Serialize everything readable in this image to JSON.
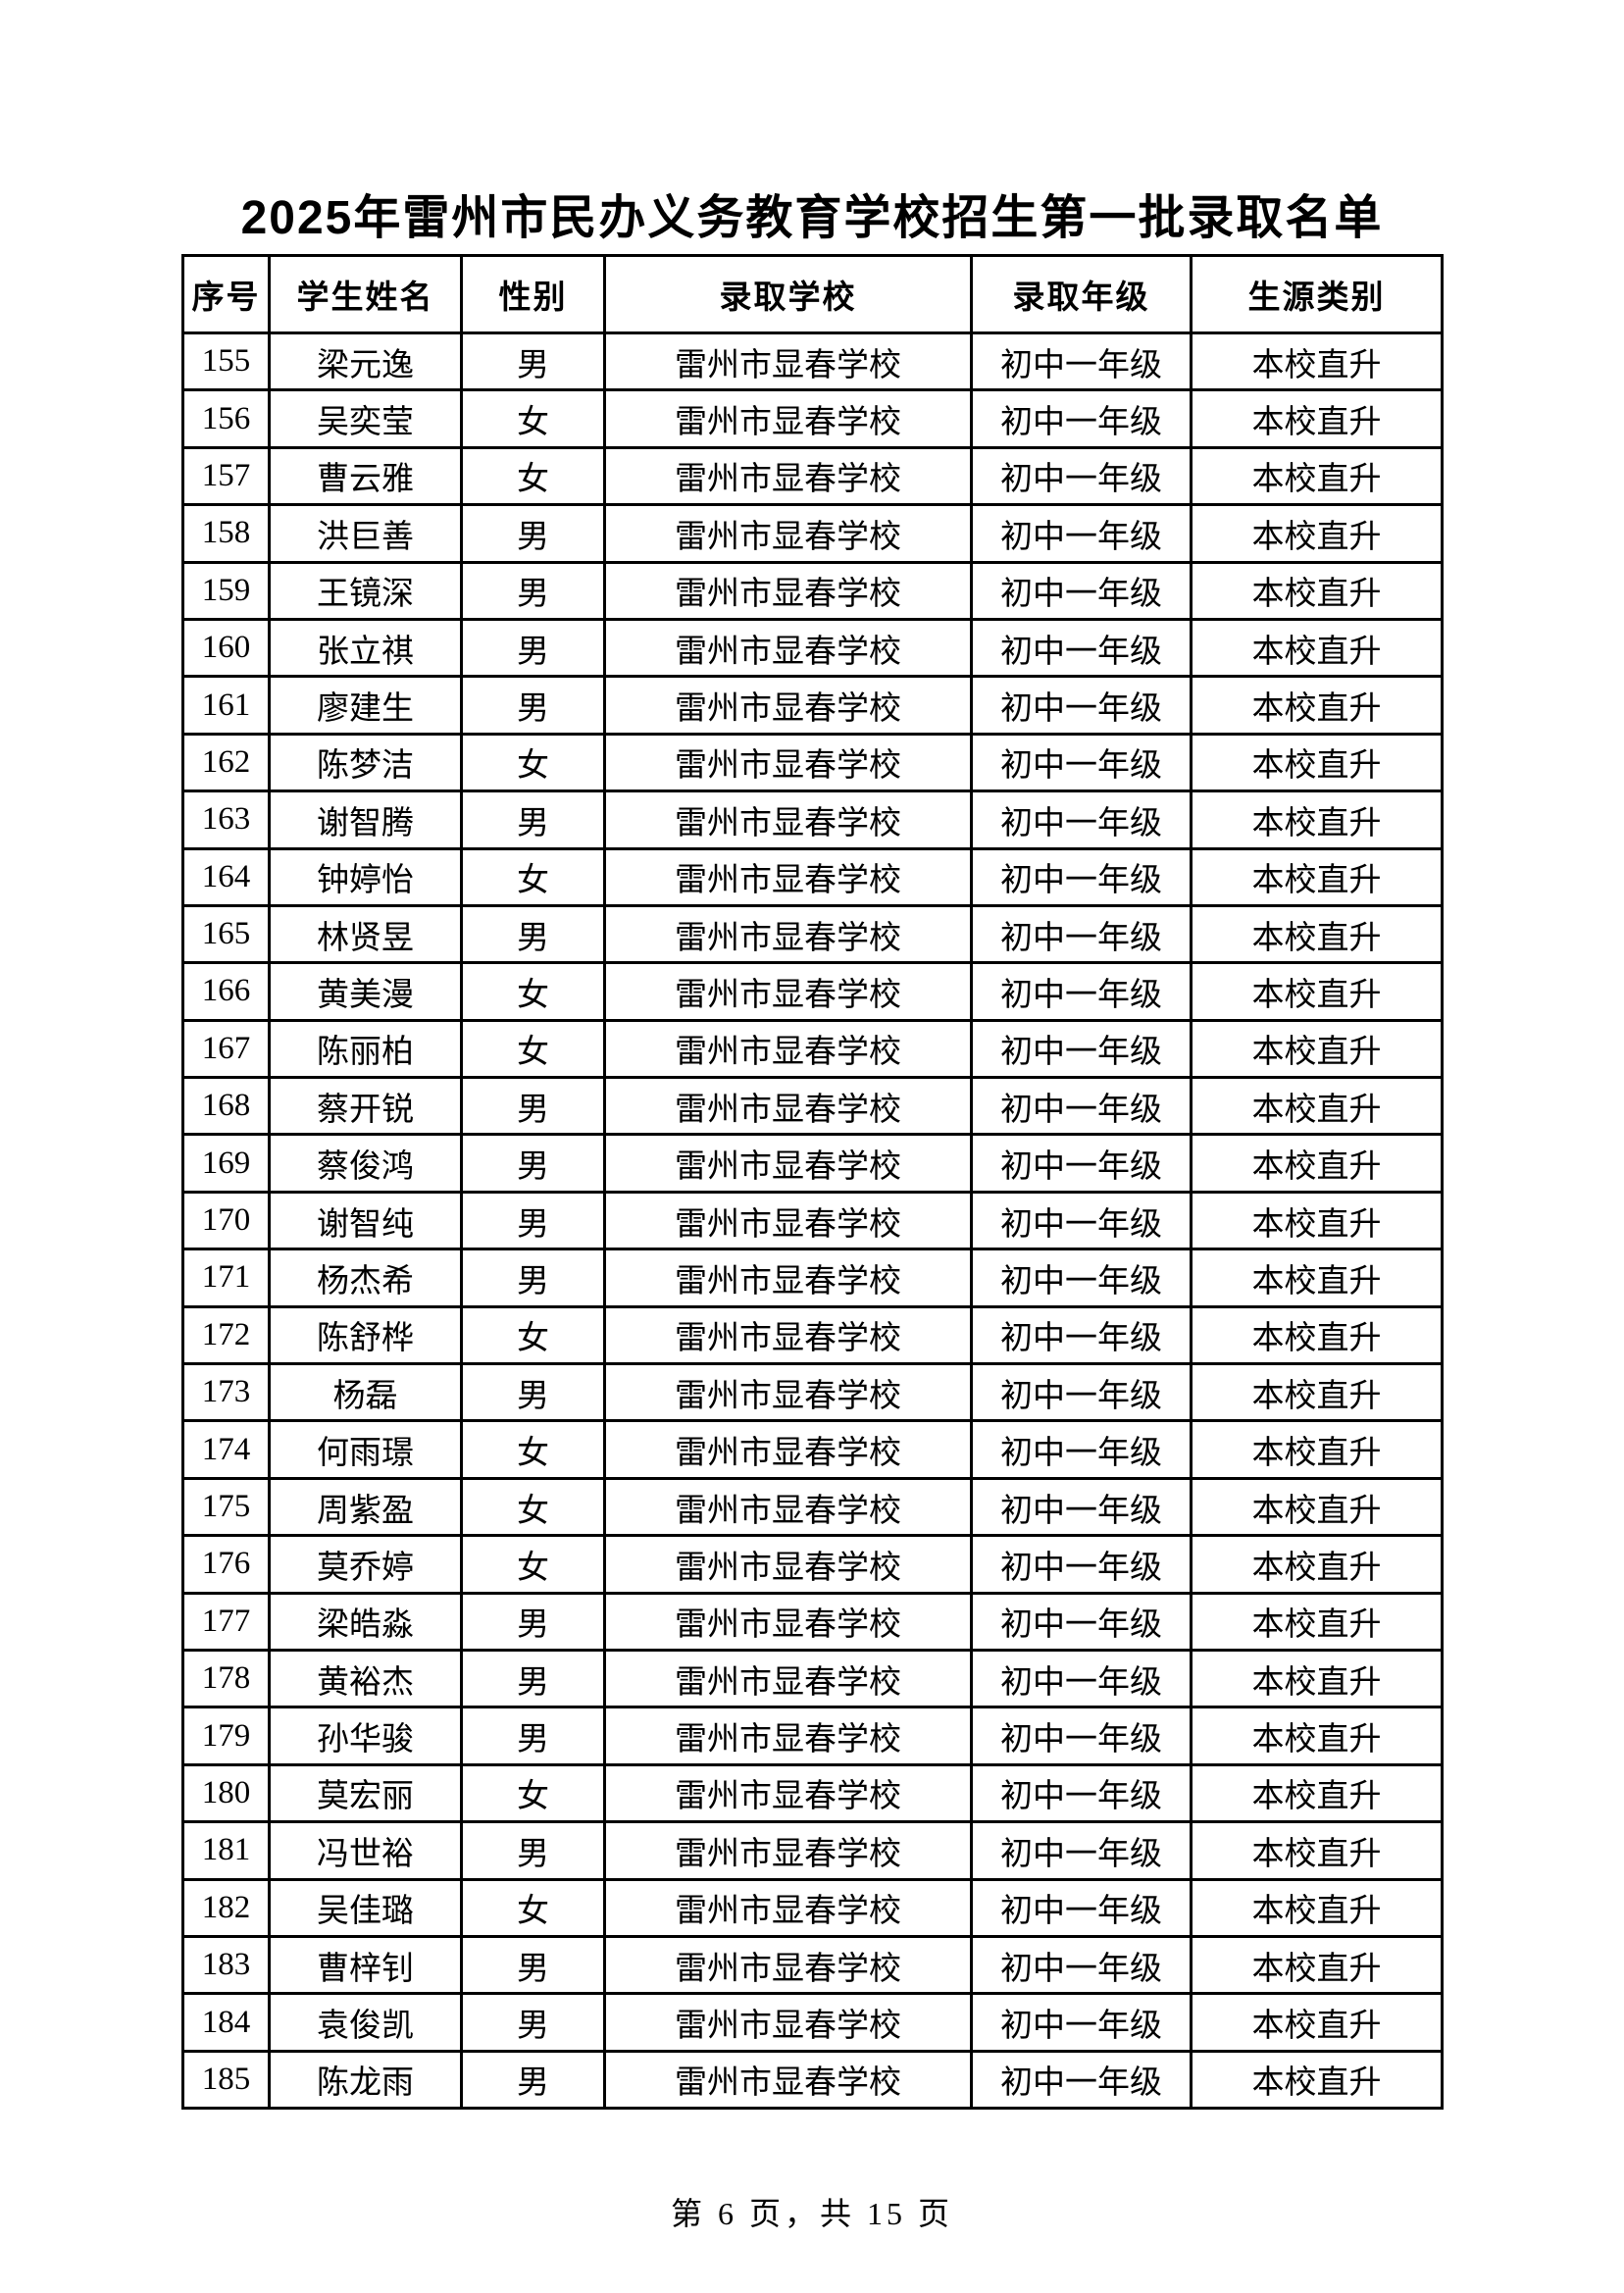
{
  "page": {
    "title": "2025年雷州市民办义务教育学校招生第一批录取名单",
    "footer": "第 6 页，共 15 页"
  },
  "table": {
    "headers": [
      "序号",
      "学生姓名",
      "性别",
      "录取学校",
      "录取年级",
      "生源类别"
    ],
    "rows": [
      [
        "155",
        "梁元逸",
        "男",
        "雷州市显春学校",
        "初中一年级",
        "本校直升"
      ],
      [
        "156",
        "吴奕莹",
        "女",
        "雷州市显春学校",
        "初中一年级",
        "本校直升"
      ],
      [
        "157",
        "曹云雅",
        "女",
        "雷州市显春学校",
        "初中一年级",
        "本校直升"
      ],
      [
        "158",
        "洪巨善",
        "男",
        "雷州市显春学校",
        "初中一年级",
        "本校直升"
      ],
      [
        "159",
        "王镜深",
        "男",
        "雷州市显春学校",
        "初中一年级",
        "本校直升"
      ],
      [
        "160",
        "张立祺",
        "男",
        "雷州市显春学校",
        "初中一年级",
        "本校直升"
      ],
      [
        "161",
        "廖建生",
        "男",
        "雷州市显春学校",
        "初中一年级",
        "本校直升"
      ],
      [
        "162",
        "陈梦洁",
        "女",
        "雷州市显春学校",
        "初中一年级",
        "本校直升"
      ],
      [
        "163",
        "谢智腾",
        "男",
        "雷州市显春学校",
        "初中一年级",
        "本校直升"
      ],
      [
        "164",
        "钟婷怡",
        "女",
        "雷州市显春学校",
        "初中一年级",
        "本校直升"
      ],
      [
        "165",
        "林贤昱",
        "男",
        "雷州市显春学校",
        "初中一年级",
        "本校直升"
      ],
      [
        "166",
        "黄美漫",
        "女",
        "雷州市显春学校",
        "初中一年级",
        "本校直升"
      ],
      [
        "167",
        "陈丽柏",
        "女",
        "雷州市显春学校",
        "初中一年级",
        "本校直升"
      ],
      [
        "168",
        "蔡开锐",
        "男",
        "雷州市显春学校",
        "初中一年级",
        "本校直升"
      ],
      [
        "169",
        "蔡俊鸿",
        "男",
        "雷州市显春学校",
        "初中一年级",
        "本校直升"
      ],
      [
        "170",
        "谢智纯",
        "男",
        "雷州市显春学校",
        "初中一年级",
        "本校直升"
      ],
      [
        "171",
        "杨杰希",
        "男",
        "雷州市显春学校",
        "初中一年级",
        "本校直升"
      ],
      [
        "172",
        "陈舒桦",
        "女",
        "雷州市显春学校",
        "初中一年级",
        "本校直升"
      ],
      [
        "173",
        "杨磊",
        "男",
        "雷州市显春学校",
        "初中一年级",
        "本校直升"
      ],
      [
        "174",
        "何雨璟",
        "女",
        "雷州市显春学校",
        "初中一年级",
        "本校直升"
      ],
      [
        "175",
        "周紫盈",
        "女",
        "雷州市显春学校",
        "初中一年级",
        "本校直升"
      ],
      [
        "176",
        "莫乔婷",
        "女",
        "雷州市显春学校",
        "初中一年级",
        "本校直升"
      ],
      [
        "177",
        "梁皓淼",
        "男",
        "雷州市显春学校",
        "初中一年级",
        "本校直升"
      ],
      [
        "178",
        "黄裕杰",
        "男",
        "雷州市显春学校",
        "初中一年级",
        "本校直升"
      ],
      [
        "179",
        "孙华骏",
        "男",
        "雷州市显春学校",
        "初中一年级",
        "本校直升"
      ],
      [
        "180",
        "莫宏丽",
        "女",
        "雷州市显春学校",
        "初中一年级",
        "本校直升"
      ],
      [
        "181",
        "冯世裕",
        "男",
        "雷州市显春学校",
        "初中一年级",
        "本校直升"
      ],
      [
        "182",
        "吴佳璐",
        "女",
        "雷州市显春学校",
        "初中一年级",
        "本校直升"
      ],
      [
        "183",
        "曹梓钊",
        "男",
        "雷州市显春学校",
        "初中一年级",
        "本校直升"
      ],
      [
        "184",
        "袁俊凯",
        "男",
        "雷州市显春学校",
        "初中一年级",
        "本校直升"
      ],
      [
        "185",
        "陈龙雨",
        "男",
        "雷州市显春学校",
        "初中一年级",
        "本校直升"
      ]
    ]
  }
}
